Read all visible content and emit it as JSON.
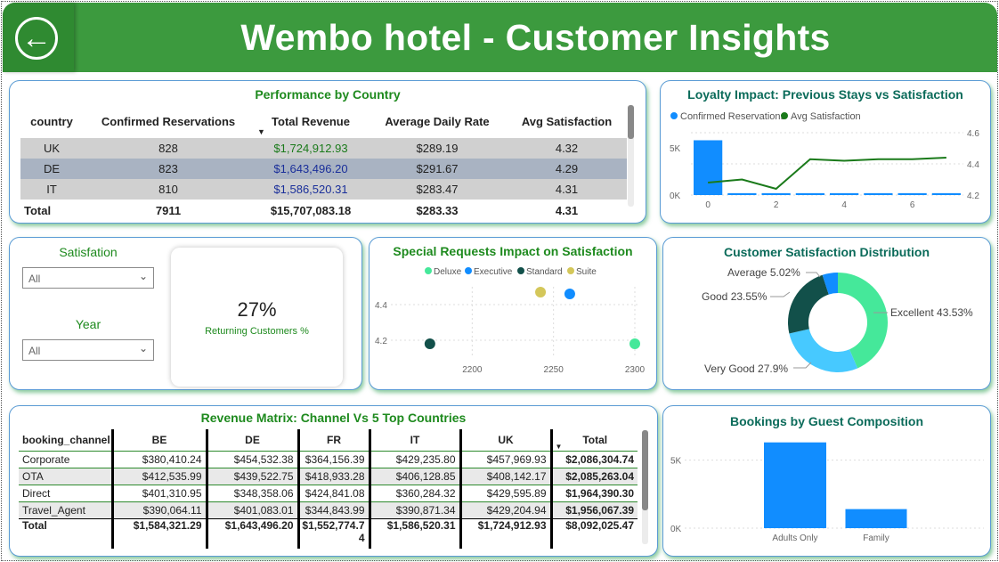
{
  "header": {
    "title": "Wembo hotel - Customer Insights",
    "back_icon": "arrow-left-icon"
  },
  "performance": {
    "title": "Performance by Country",
    "columns": [
      "country",
      "Confirmed Reservations",
      "Total Revenue",
      "Average Daily Rate",
      "Avg Satisfaction"
    ],
    "rows": [
      {
        "country": "UK",
        "reservations": "828",
        "revenue": "$1,724,912.93",
        "adr": "$289.19",
        "sat": "4.32"
      },
      {
        "country": "DE",
        "reservations": "823",
        "revenue": "$1,643,496.20",
        "adr": "$291.67",
        "sat": "4.29"
      },
      {
        "country": "IT",
        "reservations": "810",
        "revenue": "$1,586,520.31",
        "adr": "$283.47",
        "sat": "4.31"
      }
    ],
    "total": {
      "label": "Total",
      "reservations": "7911",
      "revenue": "$15,707,083.18",
      "adr": "$283.33",
      "sat": "4.31"
    },
    "colors": {
      "revenue_uk": "#1a7a1a",
      "revenue_other": "#1a2f9a"
    }
  },
  "slicers": {
    "satisfaction": {
      "label": "Satisfation",
      "value": "All"
    },
    "year": {
      "label": "Year",
      "value": "All"
    }
  },
  "kpi": {
    "value": "27%",
    "label": "Returning Customers %"
  },
  "loyalty": {
    "title": "Loyalty Impact: Previous Stays vs Satisfaction",
    "legend": [
      "Confirmed Reservations",
      "Avg Satisfaction"
    ]
  },
  "special": {
    "title": "Special Requests Impact on Satisfaction",
    "legend": [
      "Deluxe",
      "Executive",
      "Standard",
      "Suite"
    ]
  },
  "distribution": {
    "title": "Customer Satisfaction Distribution",
    "labels": {
      "average": "Average 5.02%",
      "good": "Good 23.55%",
      "very_good": "Very Good 27.9%",
      "excellent": "Excellent 43.53%"
    }
  },
  "matrix": {
    "title": "Revenue Matrix: Channel Vs 5 Top Countries",
    "columns": [
      "booking_channel",
      "BE",
      "DE",
      "FR",
      "IT",
      "UK",
      "Total"
    ],
    "rows": [
      [
        "Corporate",
        "$380,410.24",
        "$454,532.38",
        "$364,156.39",
        "$429,235.80",
        "$457,969.93",
        "$2,086,304.74"
      ],
      [
        "OTA",
        "$412,535.99",
        "$439,522.75",
        "$418,933.28",
        "$406,128.85",
        "$408,142.17",
        "$2,085,263.04"
      ],
      [
        "Direct",
        "$401,310.95",
        "$348,358.06",
        "$424,841.08",
        "$360,284.32",
        "$429,595.89",
        "$1,964,390.30"
      ],
      [
        "Travel_Agent",
        "$390,064.11",
        "$401,083.01",
        "$344,843.99",
        "$390,871.34",
        "$429,204.94",
        "$1,956,067.39"
      ]
    ],
    "total": [
      "Total",
      "$1,584,321.29",
      "$1,643,496.20",
      "$1,552,774.74",
      "$1,586,520.31",
      "$1,724,912.93",
      "$8,092,025.47"
    ]
  },
  "bookings": {
    "title": "Bookings by Guest Composition"
  },
  "chart_data": [
    {
      "type": "bar+line",
      "title": "Loyalty Impact: Previous Stays vs Satisfaction",
      "x": [
        0,
        1,
        2,
        3,
        4,
        5,
        6,
        7
      ],
      "x_ticks": [
        "0",
        "2",
        "4",
        "6"
      ],
      "series": [
        {
          "name": "Confirmed Reservations",
          "type": "bar",
          "color": "#118dff",
          "values": [
            5800,
            200,
            200,
            200,
            200,
            200,
            200,
            200
          ]
        },
        {
          "name": "Avg Satisfaction",
          "type": "line",
          "color": "#1a7a1a",
          "values": [
            4.28,
            4.3,
            4.24,
            4.43,
            4.42,
            4.43,
            4.43,
            4.44
          ]
        }
      ],
      "y_left": {
        "ticks": [
          "0K",
          "5K"
        ],
        "range": [
          0,
          6600
        ]
      },
      "y_right": {
        "ticks": [
          "4.2",
          "4.4",
          "4.6"
        ],
        "range": [
          4.2,
          4.6
        ]
      }
    },
    {
      "type": "scatter",
      "title": "Special Requests Impact on Satisfaction",
      "series": [
        {
          "name": "Deluxe",
          "color": "#45e89a",
          "x": [
            2300
          ],
          "y": [
            4.18
          ]
        },
        {
          "name": "Executive",
          "color": "#118dff",
          "x": [
            2260
          ],
          "y": [
            4.46
          ]
        },
        {
          "name": "Standard",
          "color": "#12504a",
          "x": [
            2174
          ],
          "y": [
            4.18
          ]
        },
        {
          "name": "Suite",
          "color": "#d4c75a",
          "x": [
            2242
          ],
          "y": [
            4.47
          ]
        }
      ],
      "x_ticks": [
        "2200",
        "2250",
        "2300"
      ],
      "y_ticks": [
        "4.2",
        "4.4"
      ],
      "x_range": [
        2150,
        2300
      ],
      "y_range": [
        4.1,
        4.5
      ]
    },
    {
      "type": "pie",
      "title": "Customer Satisfaction Distribution",
      "categories": [
        "Excellent",
        "Very Good",
        "Good",
        "Average"
      ],
      "values": [
        43.53,
        27.9,
        23.55,
        5.02
      ],
      "colors": [
        "#45e89a",
        "#47c9ff",
        "#12504a",
        "#118dff"
      ]
    },
    {
      "type": "bar",
      "title": "Bookings by Guest Composition",
      "categories": [
        "Adults Only",
        "Family"
      ],
      "values": [
        6300,
        1400
      ],
      "color": "#118dff",
      "y_ticks": [
        "0K",
        "5K"
      ],
      "ylim": [
        0,
        7000
      ]
    }
  ]
}
